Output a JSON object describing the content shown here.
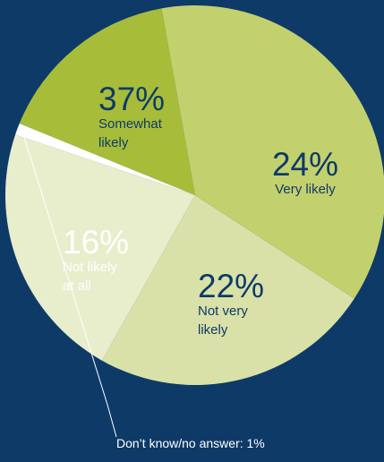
{
  "chart_data": {
    "type": "pie",
    "slices": [
      {
        "value": 24,
        "pct_label": "24%",
        "label_lines": [
          "Very likely"
        ],
        "color": "#d9e1a8",
        "text_color": "#0e3a68"
      },
      {
        "value": 22,
        "pct_label": "22%",
        "label_lines": [
          "Not very",
          "likely"
        ],
        "color": "#e8edcc",
        "text_color": "#0e3a68"
      },
      {
        "value": 1,
        "pct_label": "",
        "label_lines": [],
        "color": "#ffffff",
        "text_color": "#0e3a68"
      },
      {
        "value": 16,
        "pct_label": "16%",
        "label_lines": [
          "Not likely",
          "at all"
        ],
        "color": "#a7bd3a",
        "text_color": "#ffffff"
      },
      {
        "value": 37,
        "pct_label": "37%",
        "label_lines": [
          "Somewhat",
          "likely"
        ],
        "color": "#c3d06e",
        "text_color": "#0e3a68"
      }
    ],
    "callout": {
      "text": "Don’t know/no answer: 1%"
    },
    "legend": "none"
  }
}
